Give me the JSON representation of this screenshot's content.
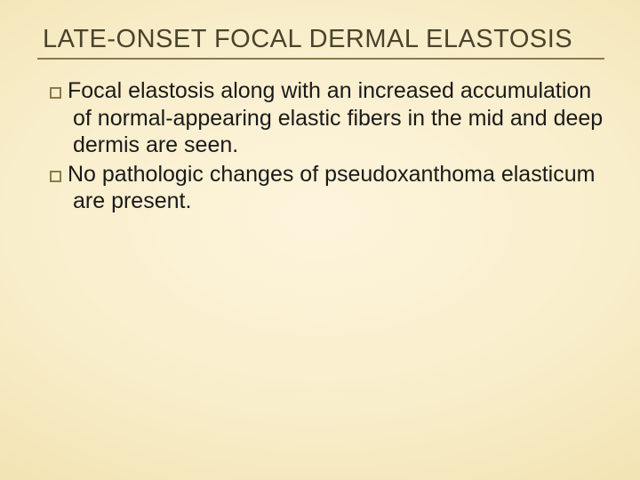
{
  "slide": {
    "background": {
      "gradient_center_color": "#fdf4dc",
      "gradient_mid_color": "#f2e3b2",
      "gradient_edge_color": "#e4d196"
    },
    "title": {
      "text": "LATE-ONSET FOCAL DERMAL ELASTOSIS",
      "color": "#4a432c",
      "underline_color": "#8a7a4a",
      "fontsize_pt": 22
    },
    "bullets": [
      {
        "text": "Focal elastosis along with an increased accumulation of normal-appearing elastic fibers in the mid and deep dermis are seen."
      },
      {
        "text": "No pathologic changes of pseudoxanthoma elasticum are present."
      }
    ],
    "bullet_style": {
      "marker": "hollow-square",
      "marker_color": "#8a7a4a",
      "text_color": "#1a1a1a",
      "fontsize_pt": 19
    }
  }
}
